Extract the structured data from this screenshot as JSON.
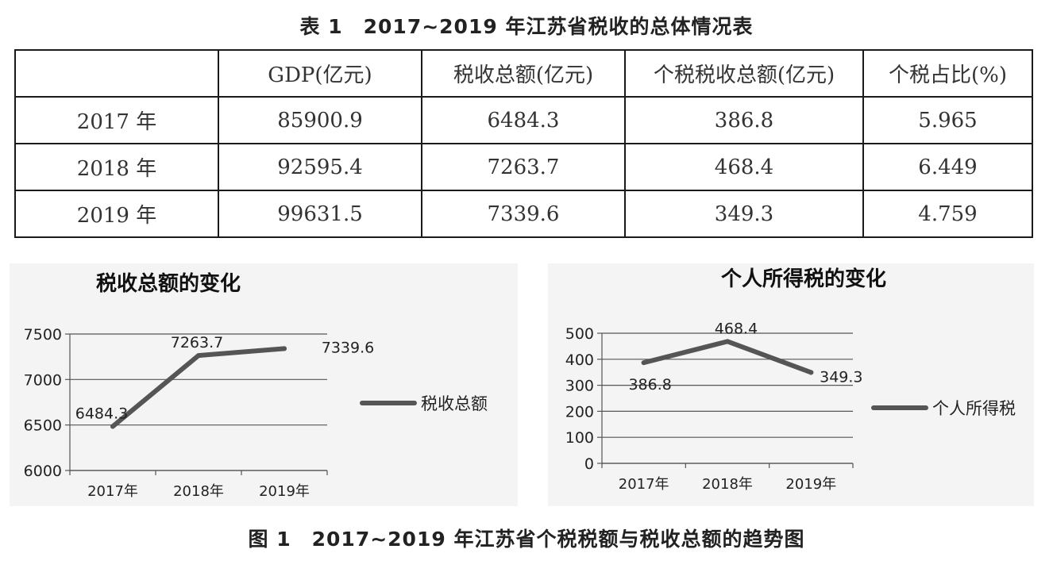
{
  "table": {
    "title": "表 1　2017~2019 年江苏省税收的总体情况表",
    "headers": [
      "",
      "GDP(亿元)",
      "税收总额(亿元)",
      "个税税收总额(亿元)",
      "个税占比(%)"
    ],
    "rows": [
      [
        "2017 年",
        "85900.9",
        "6484.3",
        "386.8",
        "5.965"
      ],
      [
        "2018 年",
        "92595.4",
        "7263.7",
        "468.4",
        "6.449"
      ],
      [
        "2019 年",
        "99631.5",
        "7339.6",
        "349.3",
        "4.759"
      ]
    ]
  },
  "chart_data": [
    {
      "type": "line",
      "title": "税收总额的变化",
      "categories": [
        "2017年",
        "2018年",
        "2019年"
      ],
      "series": [
        {
          "name": "税收总额",
          "values": [
            6484.3,
            7263.7,
            7339.6
          ],
          "color": "#555555"
        }
      ],
      "data_labels": [
        "6484.3",
        "7263.7",
        "7339.6"
      ],
      "yticks": [
        6000,
        6500,
        7000,
        7500
      ],
      "ylim": [
        6000,
        7500
      ],
      "grid": true,
      "legend": "right"
    },
    {
      "type": "line",
      "title": "个人所得税的变化",
      "categories": [
        "2017年",
        "2018年",
        "2019年"
      ],
      "series": [
        {
          "name": "个人所得税",
          "values": [
            386.8,
            468.4,
            349.3
          ],
          "color": "#555555"
        }
      ],
      "data_labels": [
        "386.8",
        "468.4",
        "349.3"
      ],
      "yticks": [
        0,
        100,
        200,
        300,
        400,
        500
      ],
      "ylim": [
        0,
        500
      ],
      "grid": true,
      "legend": "right"
    }
  ],
  "figure": {
    "caption": "图 1　2017~2019 年江苏省个税税额与税收总额的趋势图"
  }
}
